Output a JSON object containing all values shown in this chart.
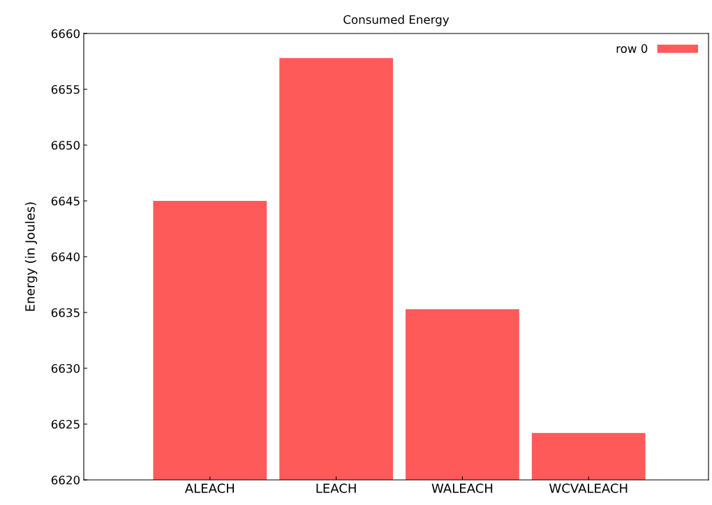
{
  "chart_data": {
    "type": "bar",
    "title": "Consumed Energy",
    "ylabel": "Energy (in Joules)",
    "categories": [
      "ALEACH",
      "LEACH",
      "WALEACH",
      "WCVALEACH"
    ],
    "series": [
      {
        "name": "row 0",
        "color": "#ff5a5a",
        "values": [
          6645.0,
          6657.8,
          6635.3,
          6624.2
        ]
      }
    ],
    "ylim": [
      6620,
      6660
    ],
    "yticks": [
      6620,
      6625,
      6630,
      6635,
      6640,
      6645,
      6650,
      6655,
      6660
    ],
    "grid": false,
    "legend": "top right"
  }
}
